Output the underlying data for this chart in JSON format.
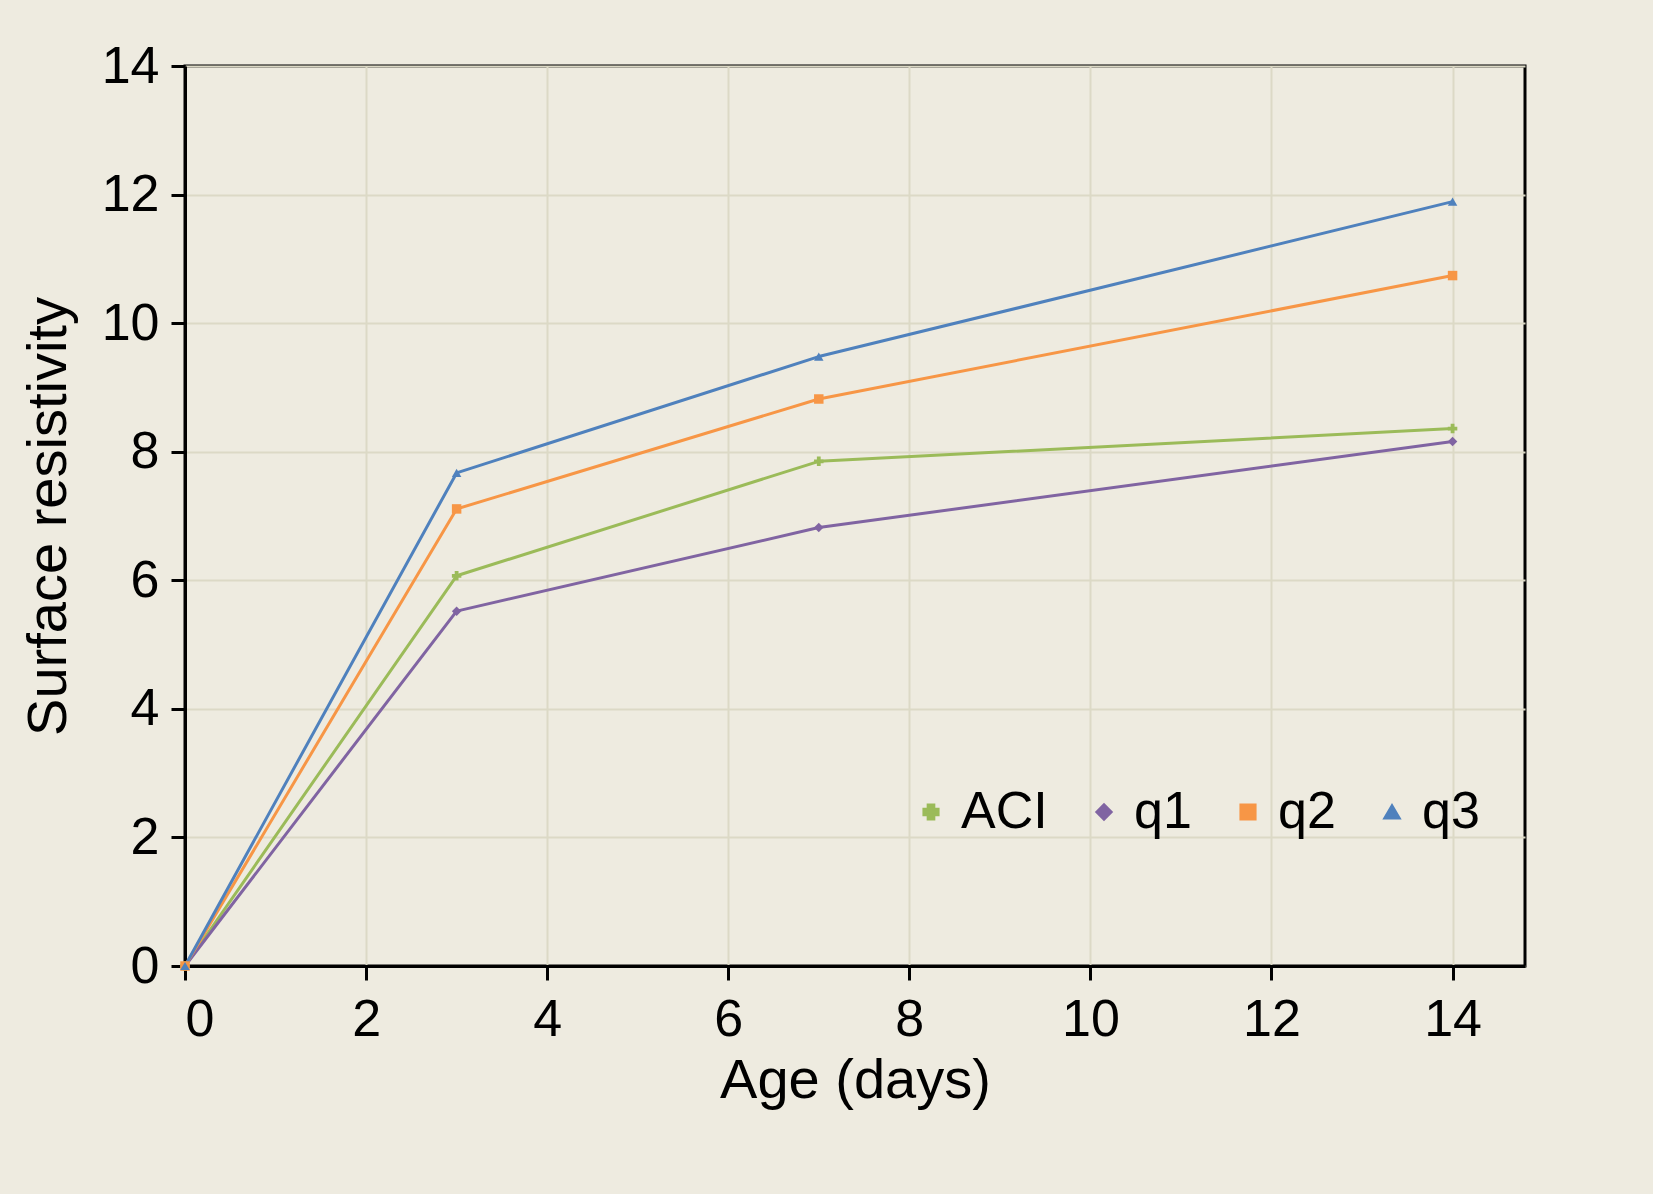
{
  "chart_data": {
    "type": "line",
    "xlabel": "Age (days)",
    "ylabel": "Surface resistivity",
    "x": [
      0,
      3,
      7,
      14
    ],
    "series": [
      {
        "name": "ACI",
        "color": "#9bbb59",
        "marker": "cross",
        "values": [
          0,
          6.07,
          7.85,
          8.36
        ]
      },
      {
        "name": "q1",
        "color": "#8064a2",
        "marker": "diamond",
        "values": [
          0,
          5.52,
          6.82,
          8.16
        ]
      },
      {
        "name": "q2",
        "color": "#f79646",
        "marker": "square",
        "values": [
          0,
          7.11,
          8.82,
          10.74
        ]
      },
      {
        "name": "q3",
        "color": "#4f81bd",
        "marker": "triangle",
        "values": [
          0,
          7.67,
          9.48,
          11.89
        ]
      }
    ],
    "xlim": [
      0,
      14.8
    ],
    "xticks": [
      0,
      2,
      4,
      6,
      8,
      10,
      12,
      14
    ],
    "ylim": [
      0,
      14
    ],
    "yticks": [
      0,
      2,
      4,
      6,
      8,
      10,
      12,
      14
    ],
    "grid": true,
    "legend": "bottom right",
    "line_style": "solid"
  }
}
